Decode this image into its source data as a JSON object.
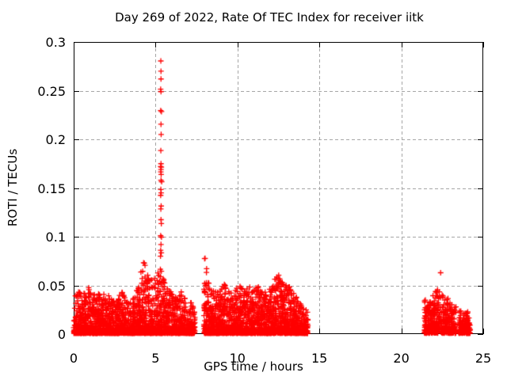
{
  "chart_data": {
    "type": "scatter",
    "title": "Day 269 of 2022, Rate Of TEC Index for receiver iitk",
    "xlabel": "GPS time / hours",
    "ylabel": "ROTI / TECUs",
    "xlim": [
      0,
      25
    ],
    "ylim": [
      0,
      0.3
    ],
    "xticks": [
      0,
      5,
      10,
      15,
      20,
      25
    ],
    "xtick_labels": [
      "0",
      "5",
      "10",
      "15",
      "20",
      "25"
    ],
    "yticks": [
      0,
      0.05,
      0.1,
      0.15,
      0.2,
      0.25,
      0.3
    ],
    "ytick_labels": [
      "0",
      "0.05",
      "0.1",
      "0.15",
      "0.2",
      "0.25",
      "0.3"
    ],
    "legend": "none",
    "background_color": "#ffffff",
    "frame_color": "#000000",
    "grid": {
      "visible": true,
      "color": "#a6a6a6",
      "dash": "4,3"
    },
    "marker": {
      "shape": "plus",
      "color": "#ff0000",
      "size": 7,
      "line_width": 1.3
    },
    "seed": 1337,
    "clusters": [
      {
        "name": "morning-block",
        "x_range": [
          0.0,
          7.4
        ],
        "points_per_hour": 280,
        "y_min": 0.001,
        "power": 2.6,
        "envelope": [
          [
            0.0,
            0.038
          ],
          [
            0.3,
            0.045
          ],
          [
            0.6,
            0.042
          ],
          [
            0.85,
            0.052
          ],
          [
            1.1,
            0.042
          ],
          [
            1.4,
            0.045
          ],
          [
            1.7,
            0.038
          ],
          [
            2.0,
            0.044
          ],
          [
            2.3,
            0.036
          ],
          [
            2.6,
            0.032
          ],
          [
            2.9,
            0.046
          ],
          [
            3.2,
            0.036
          ],
          [
            3.5,
            0.032
          ],
          [
            3.8,
            0.042
          ],
          [
            4.1,
            0.065
          ],
          [
            4.3,
            0.075
          ],
          [
            4.6,
            0.055
          ],
          [
            4.9,
            0.06
          ],
          [
            5.2,
            0.07
          ],
          [
            5.4,
            0.065
          ],
          [
            5.7,
            0.05
          ],
          [
            6.0,
            0.042
          ],
          [
            6.3,
            0.038
          ],
          [
            6.6,
            0.045
          ],
          [
            6.9,
            0.036
          ],
          [
            7.2,
            0.032
          ],
          [
            7.4,
            0.03
          ]
        ]
      },
      {
        "name": "midday-block",
        "x_range": [
          7.95,
          14.3
        ],
        "points_per_hour": 280,
        "y_min": 0.001,
        "power": 2.6,
        "envelope": [
          [
            7.95,
            0.045
          ],
          [
            8.0,
            0.083
          ],
          [
            8.1,
            0.075
          ],
          [
            8.2,
            0.06
          ],
          [
            8.35,
            0.05
          ],
          [
            8.6,
            0.05
          ],
          [
            8.9,
            0.046
          ],
          [
            9.2,
            0.052
          ],
          [
            9.5,
            0.046
          ],
          [
            9.8,
            0.042
          ],
          [
            10.1,
            0.055
          ],
          [
            10.4,
            0.046
          ],
          [
            10.7,
            0.05
          ],
          [
            11.0,
            0.045
          ],
          [
            11.3,
            0.052
          ],
          [
            11.6,
            0.042
          ],
          [
            11.9,
            0.046
          ],
          [
            12.2,
            0.055
          ],
          [
            12.5,
            0.062
          ],
          [
            12.8,
            0.056
          ],
          [
            13.1,
            0.05
          ],
          [
            13.4,
            0.046
          ],
          [
            13.7,
            0.036
          ],
          [
            14.0,
            0.03
          ],
          [
            14.3,
            0.026
          ]
        ]
      },
      {
        "name": "late-block",
        "x_range": [
          21.4,
          23.35
        ],
        "points_per_hour": 230,
        "y_min": 0.001,
        "power": 2.2,
        "envelope": [
          [
            21.4,
            0.035
          ],
          [
            21.8,
            0.042
          ],
          [
            22.0,
            0.048
          ],
          [
            22.2,
            0.046
          ],
          [
            22.5,
            0.04
          ],
          [
            22.8,
            0.038
          ],
          [
            23.1,
            0.032
          ],
          [
            23.35,
            0.028
          ]
        ]
      },
      {
        "name": "late-tail",
        "x_range": [
          23.5,
          24.2
        ],
        "points_per_hour": 230,
        "y_min": 0.001,
        "power": 2.2,
        "envelope": [
          [
            23.5,
            0.024
          ],
          [
            23.9,
            0.026
          ],
          [
            24.2,
            0.02
          ]
        ]
      }
    ],
    "spike_points": [
      [
        5.32,
        0.2805
      ],
      [
        5.33,
        0.27
      ],
      [
        5.33,
        0.262
      ],
      [
        5.31,
        0.2515
      ],
      [
        5.33,
        0.249
      ],
      [
        5.31,
        0.2295
      ],
      [
        5.36,
        0.2285
      ],
      [
        5.33,
        0.2155
      ],
      [
        5.34,
        0.205
      ],
      [
        5.32,
        0.1885
      ],
      [
        5.33,
        0.175
      ],
      [
        5.31,
        0.172
      ],
      [
        5.35,
        0.1715
      ],
      [
        5.33,
        0.169
      ],
      [
        5.32,
        0.1665
      ],
      [
        5.34,
        0.164
      ],
      [
        5.33,
        0.158
      ],
      [
        5.37,
        0.1565
      ],
      [
        5.32,
        0.1485
      ],
      [
        5.34,
        0.145
      ],
      [
        5.31,
        0.1425
      ],
      [
        5.34,
        0.1315
      ],
      [
        5.32,
        0.1285
      ],
      [
        5.33,
        0.1175
      ],
      [
        5.35,
        0.1135
      ],
      [
        5.31,
        0.101
      ],
      [
        5.36,
        0.0995
      ],
      [
        5.33,
        0.092
      ],
      [
        5.31,
        0.086
      ],
      [
        5.35,
        0.0835
      ],
      [
        5.3,
        0.08
      ]
    ],
    "outlier_points": [
      [
        22.4,
        0.063
      ]
    ]
  }
}
